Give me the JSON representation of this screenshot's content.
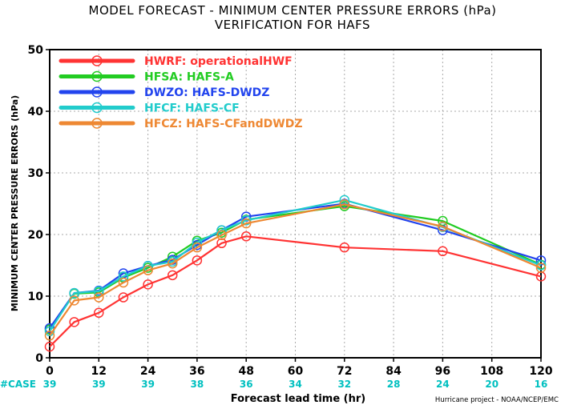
{
  "chart_data": {
    "type": "line",
    "title": "MODEL FORECAST - MINIMUM CENTER PRESSURE ERRORS (hPa)",
    "subtitle": "VERIFICATION FOR HAFS",
    "xlabel": "Forecast lead time (hr)",
    "ylabel": "MINIMUM CENTER PRESSURE ERRORS (hPa)",
    "xlim": [
      0,
      120
    ],
    "ylim": [
      0,
      50
    ],
    "xticks": [
      0,
      12,
      24,
      36,
      48,
      60,
      72,
      84,
      96,
      108,
      120
    ],
    "yticks": [
      0,
      10,
      20,
      30,
      40,
      50
    ],
    "grid": true,
    "legend_position": "top-left",
    "case_label": "#CASE",
    "cases": [
      39,
      39,
      39,
      38,
      36,
      34,
      32,
      28,
      24,
      20,
      16
    ],
    "credit": "Hurricane project - NOAA/NCEP/EMC",
    "series": [
      {
        "name": "HWRF: operationalHWF",
        "color": "#ff3333",
        "x": [
          0,
          6,
          12,
          18,
          24,
          30,
          36,
          42,
          48,
          72,
          96,
          120
        ],
        "y": [
          1.8,
          5.8,
          7.3,
          9.8,
          11.9,
          13.4,
          15.8,
          18.6,
          19.7,
          17.9,
          17.3,
          13.2
        ]
      },
      {
        "name": "HFSA: HAFS-A",
        "color": "#22cc22",
        "x": [
          0,
          6,
          12,
          18,
          24,
          30,
          36,
          42,
          48,
          72,
          96,
          120
        ],
        "y": [
          4.6,
          10.4,
          10.6,
          13.0,
          14.6,
          16.4,
          19.0,
          20.3,
          22.4,
          24.6,
          22.2,
          15.1
        ]
      },
      {
        "name": "DWZO: HAFS-DWDZ",
        "color": "#2244ee",
        "x": [
          0,
          6,
          12,
          18,
          24,
          30,
          36,
          42,
          48,
          72,
          96,
          120
        ],
        "y": [
          4.8,
          10.5,
          10.9,
          13.7,
          14.9,
          15.9,
          18.3,
          20.7,
          22.9,
          25.0,
          20.7,
          15.8
        ]
      },
      {
        "name": "HFCF: HAFS-CF",
        "color": "#22cccc",
        "x": [
          0,
          6,
          12,
          18,
          24,
          30,
          36,
          42,
          48,
          72,
          96,
          120
        ],
        "y": [
          4.3,
          10.5,
          10.8,
          13.2,
          14.9,
          15.6,
          18.7,
          20.7,
          22.3,
          25.6,
          21.2,
          15.0
        ]
      },
      {
        "name": "HFCZ: HAFS-CFandDWDZ",
        "color": "#ee8833",
        "x": [
          0,
          6,
          12,
          18,
          24,
          30,
          36,
          42,
          48,
          72,
          96,
          120
        ],
        "y": [
          3.6,
          9.3,
          9.8,
          12.2,
          14.2,
          15.3,
          17.9,
          19.9,
          21.8,
          24.9,
          21.3,
          14.6
        ]
      }
    ]
  }
}
